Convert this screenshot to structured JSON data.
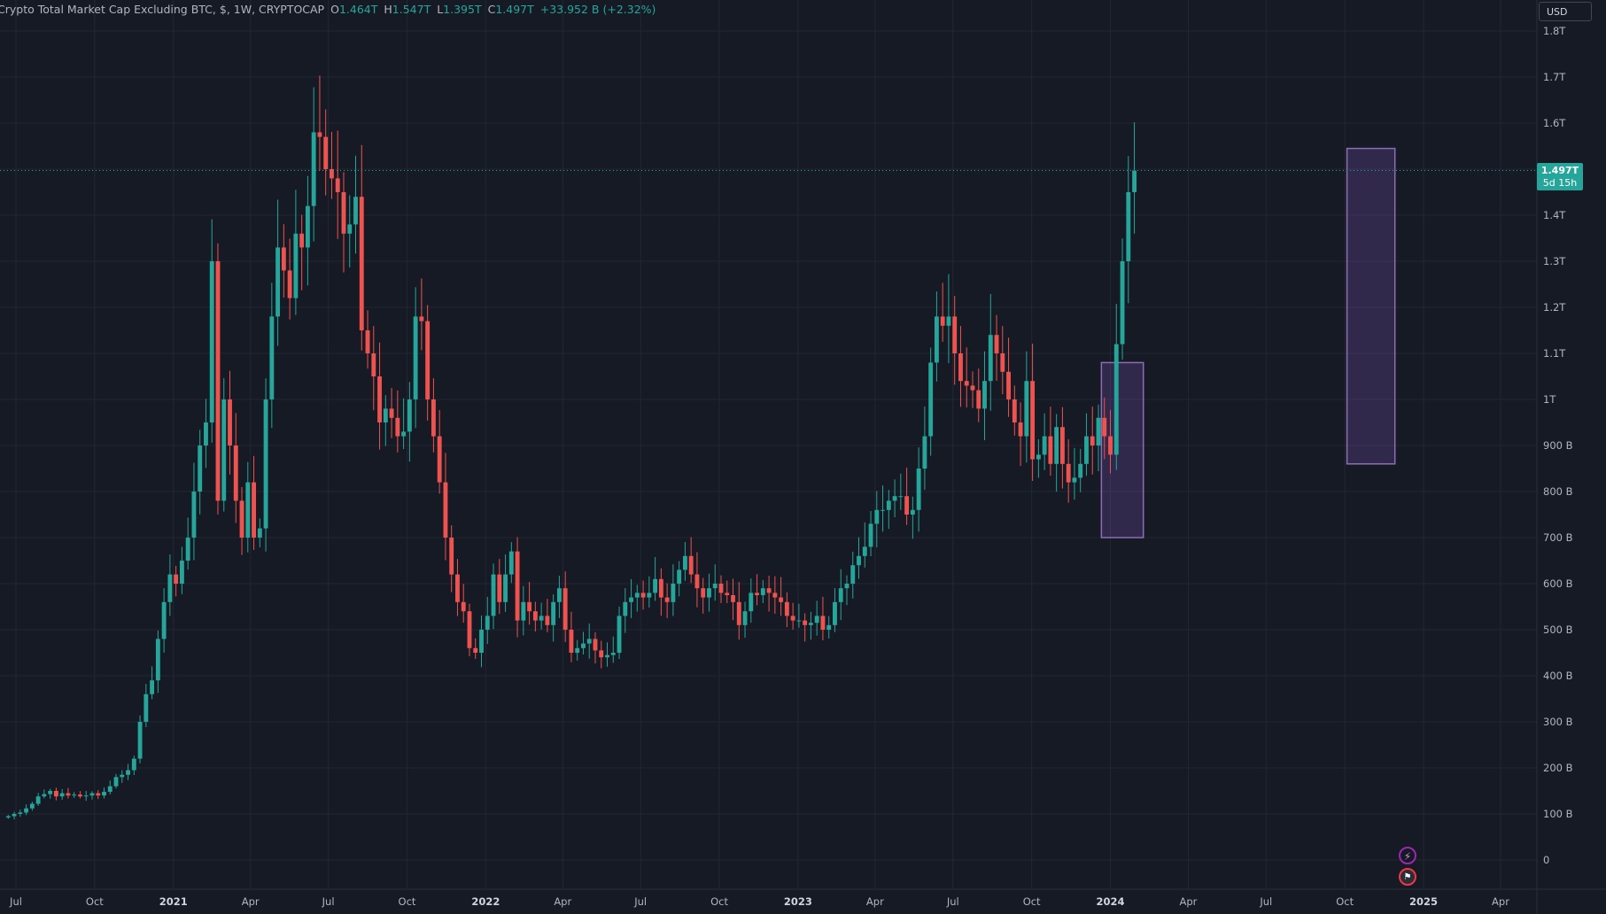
{
  "header": {
    "symbol": "Crypto Total Market Cap Excluding BTC, $, 1W, CRYPTOCAP",
    "open_label": "O",
    "open": "1.464T",
    "high_label": "H",
    "high": "1.547T",
    "low_label": "L",
    "low": "1.395T",
    "close_label": "C",
    "close": "1.497T",
    "change": "+33.952 B (+2.32%)"
  },
  "currency_button": "USD",
  "price_label": {
    "value": "1.497T",
    "countdown": "5d 15h"
  },
  "colors": {
    "up": "#26a69a",
    "down": "#ef5350",
    "background": "#161a25",
    "grid": "#232733",
    "box": "#8c6fb3"
  },
  "event_icons": [
    "lightning-icon",
    "us-flag-icon"
  ],
  "chart_data": {
    "type": "candlestick",
    "interval": "1W",
    "ylim": [
      0,
      1800
    ],
    "y_unit": "B USD",
    "y_ticks": [
      {
        "v": 0,
        "label": "0"
      },
      {
        "v": 100,
        "label": "100 B"
      },
      {
        "v": 200,
        "label": "200 B"
      },
      {
        "v": 300,
        "label": "300 B"
      },
      {
        "v": 400,
        "label": "400 B"
      },
      {
        "v": 500,
        "label": "500 B"
      },
      {
        "v": 600,
        "label": "600 B"
      },
      {
        "v": 700,
        "label": "700 B"
      },
      {
        "v": 800,
        "label": "800 B"
      },
      {
        "v": 900,
        "label": "900 B"
      },
      {
        "v": 1000,
        "label": "1T"
      },
      {
        "v": 1100,
        "label": "1.1T"
      },
      {
        "v": 1200,
        "label": "1.2T"
      },
      {
        "v": 1300,
        "label": "1.3T"
      },
      {
        "v": 1400,
        "label": "1.4T"
      },
      {
        "v": 1500,
        "label": "1.5T"
      },
      {
        "v": 1600,
        "label": "1.6T"
      },
      {
        "v": 1700,
        "label": "1.7T"
      },
      {
        "v": 1800,
        "label": "1.8T"
      }
    ],
    "x_ticks": [
      {
        "date": "2020-07-01",
        "label": "Jul",
        "bold": false
      },
      {
        "date": "2020-10-01",
        "label": "Oct",
        "bold": false
      },
      {
        "date": "2021-01-01",
        "label": "2021",
        "bold": true
      },
      {
        "date": "2021-04-01",
        "label": "Apr",
        "bold": false
      },
      {
        "date": "2021-07-01",
        "label": "Jul",
        "bold": false
      },
      {
        "date": "2021-10-01",
        "label": "Oct",
        "bold": false
      },
      {
        "date": "2022-01-01",
        "label": "2022",
        "bold": true
      },
      {
        "date": "2022-04-01",
        "label": "Apr",
        "bold": false
      },
      {
        "date": "2022-07-01",
        "label": "Jul",
        "bold": false
      },
      {
        "date": "2022-10-01",
        "label": "Oct",
        "bold": false
      },
      {
        "date": "2023-01-01",
        "label": "2023",
        "bold": true
      },
      {
        "date": "2023-04-01",
        "label": "Apr",
        "bold": false
      },
      {
        "date": "2023-07-01",
        "label": "Jul",
        "bold": false
      },
      {
        "date": "2023-10-01",
        "label": "Oct",
        "bold": false
      },
      {
        "date": "2024-01-01",
        "label": "2024",
        "bold": true
      },
      {
        "date": "2024-04-01",
        "label": "Apr",
        "bold": false
      },
      {
        "date": "2024-07-01",
        "label": "Jul",
        "bold": false
      },
      {
        "date": "2024-10-01",
        "label": "Oct",
        "bold": false
      },
      {
        "date": "2025-01-01",
        "label": "2025",
        "bold": true
      },
      {
        "date": "2025-04-01",
        "label": "Apr",
        "bold": false
      }
    ],
    "first_candle_date": "2020-06-22",
    "current_price": 1497,
    "closes": [
      95,
      100,
      103,
      112,
      122,
      138,
      143,
      150,
      138,
      145,
      140,
      142,
      138,
      140,
      145,
      140,
      148,
      160,
      180,
      185,
      195,
      220,
      300,
      360,
      390,
      480,
      560,
      620,
      600,
      650,
      700,
      800,
      900,
      950,
      1300,
      780,
      1000,
      900,
      780,
      700,
      820,
      700,
      720,
      1000,
      1180,
      1330,
      1280,
      1220,
      1360,
      1330,
      1420,
      1580,
      1570,
      1500,
      1480,
      1450,
      1360,
      1380,
      1440,
      1150,
      1100,
      1050,
      950,
      980,
      960,
      920,
      930,
      1000,
      1180,
      1170,
      1000,
      920,
      820,
      700,
      620,
      560,
      540,
      460,
      450,
      500,
      530,
      620,
      560,
      620,
      670,
      520,
      560,
      540,
      520,
      530,
      510,
      560,
      590,
      500,
      450,
      460,
      470,
      480,
      455,
      440,
      445,
      450,
      530,
      560,
      570,
      580,
      570,
      580,
      610,
      570,
      560,
      600,
      630,
      660,
      620,
      590,
      570,
      590,
      600,
      580,
      575,
      560,
      510,
      540,
      580,
      575,
      590,
      580,
      570,
      560,
      530,
      520,
      520,
      510,
      515,
      530,
      500,
      510,
      560,
      590,
      600,
      640,
      660,
      680,
      730,
      760,
      760,
      780,
      790,
      790,
      750,
      760,
      850,
      920,
      1080,
      1180,
      1160,
      1180,
      1100,
      1040,
      1030,
      1020,
      980,
      1040,
      1140,
      1100,
      1060,
      1000,
      950,
      920,
      1040,
      870,
      880,
      920,
      860,
      940,
      860,
      820,
      830,
      860,
      920,
      900,
      960,
      920,
      880,
      1120,
      1300,
      1450,
      1497
    ],
    "boxes": [
      {
        "from_index": 183,
        "to_index": 189,
        "high": 1080,
        "low": 700
      },
      {
        "from_index": 224,
        "to_index": 231,
        "high": 1545,
        "low": 860
      }
    ]
  }
}
